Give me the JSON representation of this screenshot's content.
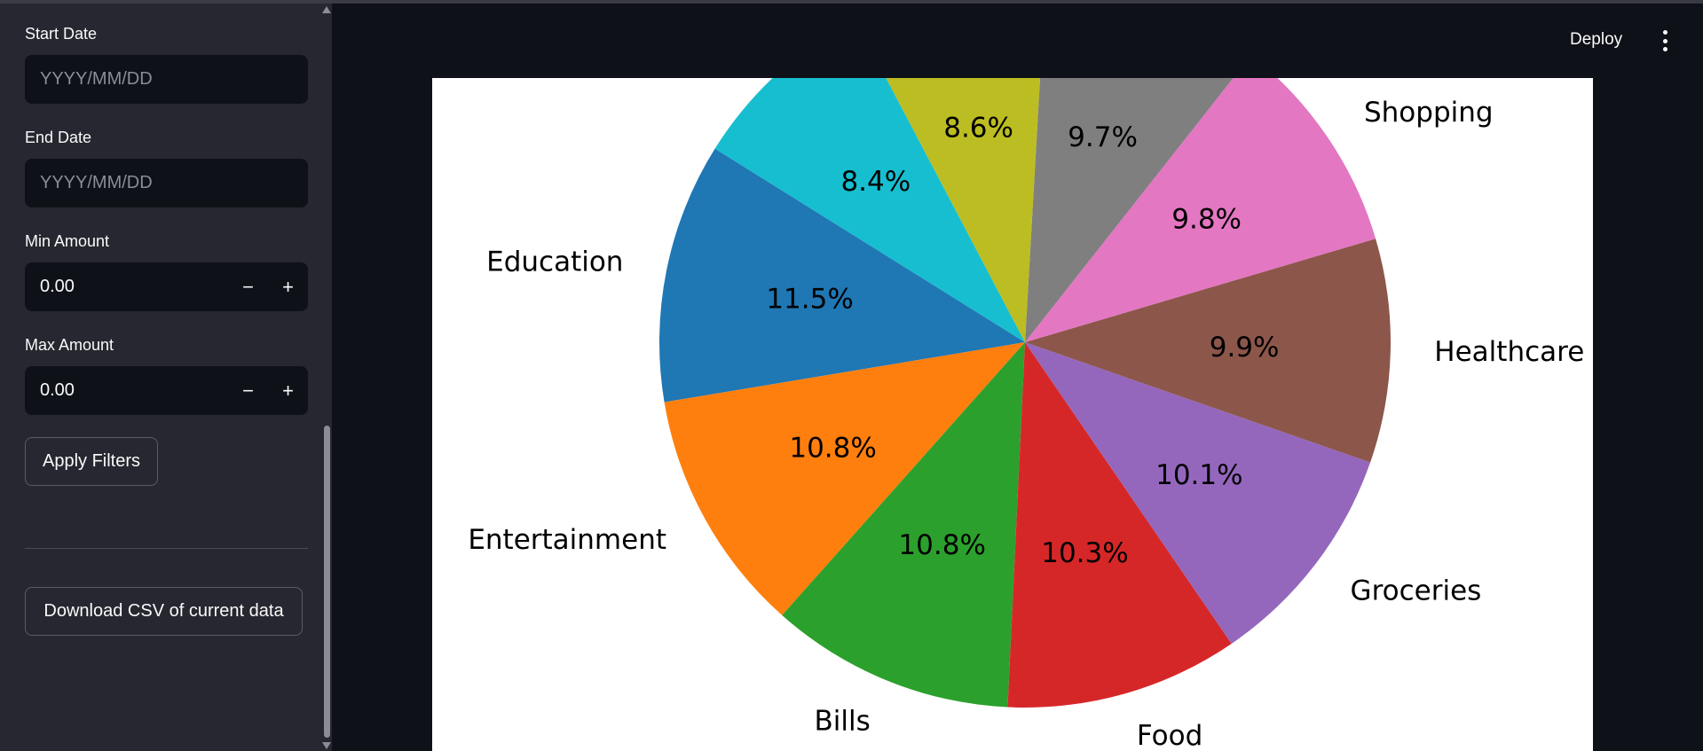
{
  "header": {
    "deploy_label": "Deploy",
    "menu_icon": "kebab-menu-icon"
  },
  "sidebar": {
    "start_date": {
      "label": "Start Date",
      "placeholder": "YYYY/MM/DD"
    },
    "end_date": {
      "label": "End Date",
      "placeholder": "YYYY/MM/DD"
    },
    "min_amount": {
      "label": "Min Amount",
      "value": "0.00",
      "minus": "−",
      "plus": "+"
    },
    "max_amount": {
      "label": "Max Amount",
      "value": "0.00",
      "minus": "−",
      "plus": "+"
    },
    "apply_label": "Apply Filters",
    "download_label": "Download CSV of current data"
  },
  "chart_data": {
    "type": "pie",
    "title": "",
    "categories": [
      "Education",
      "Entertainment",
      "Bills",
      "Food",
      "Groceries",
      "Healthcare",
      "Shopping",
      "",
      "",
      ""
    ],
    "values": [
      11.5,
      10.8,
      10.8,
      10.3,
      10.1,
      9.9,
      9.8,
      9.7,
      8.6,
      8.4
    ],
    "labels": [
      "11.5%",
      "10.8%",
      "10.8%",
      "10.3%",
      "10.1%",
      "9.9%",
      "9.8%",
      "9.7%",
      "8.6%",
      "8.4%"
    ],
    "colors": [
      "#1f77b4",
      "#ff7f0e",
      "#2ca02c",
      "#d62728",
      "#9467bd",
      "#8c564b",
      "#e377c2",
      "#7f7f7f",
      "#bcbd22",
      "#17becf"
    ]
  }
}
